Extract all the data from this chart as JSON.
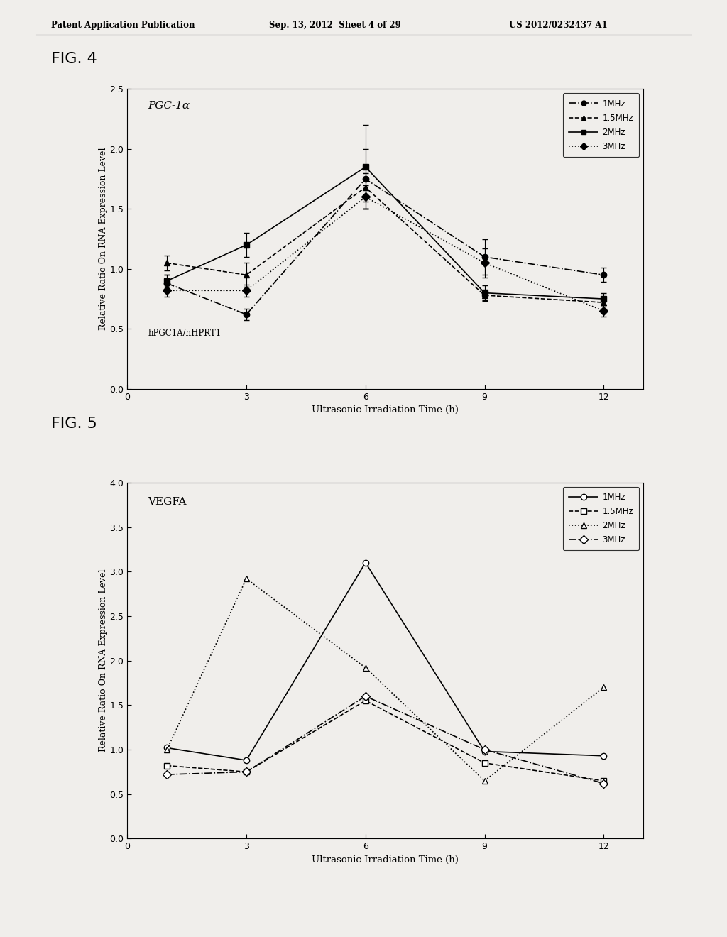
{
  "fig4": {
    "title": "PGC-1α",
    "subtitle": "hPGC1A/hHPRT1",
    "xlabel": "Ultrasonic Irradiation Time (h)",
    "ylabel": "Relative Ratio On RNA Expression Level",
    "xlim": [
      0,
      13
    ],
    "ylim": [
      0,
      2.5
    ],
    "xticks": [
      0,
      3,
      6,
      9,
      12
    ],
    "yticks": [
      0,
      0.5,
      1.0,
      1.5,
      2.0,
      2.5
    ],
    "x": [
      1,
      3,
      6,
      9,
      12
    ],
    "series_order": [
      "1MHz",
      "1.5MHz",
      "2MHz",
      "3MHz"
    ],
    "series": {
      "1MHz": {
        "y": [
          0.88,
          0.62,
          1.75,
          1.1,
          0.95
        ],
        "yerr": [
          0.07,
          0.05,
          0.25,
          0.15,
          0.06
        ],
        "linestyle": "-.",
        "marker": "o",
        "markerfacecolor": "black",
        "label": "1MHz"
      },
      "1.5MHz": {
        "y": [
          1.05,
          0.95,
          1.68,
          0.78,
          0.72
        ],
        "yerr": [
          0.06,
          0.1,
          0.12,
          0.05,
          0.05
        ],
        "linestyle": "--",
        "marker": "^",
        "markerfacecolor": "black",
        "label": "1.5MHz"
      },
      "2MHz": {
        "y": [
          0.9,
          1.2,
          1.85,
          0.8,
          0.75
        ],
        "yerr": [
          0.05,
          0.1,
          0.35,
          0.06,
          0.05
        ],
        "linestyle": "-",
        "marker": "s",
        "markerfacecolor": "black",
        "label": "2MHz"
      },
      "3MHz": {
        "y": [
          0.82,
          0.82,
          1.6,
          1.05,
          0.65
        ],
        "yerr": [
          0.05,
          0.05,
          0.1,
          0.12,
          0.05
        ],
        "linestyle": ":",
        "marker": "D",
        "markerfacecolor": "black",
        "label": "3MHz"
      }
    }
  },
  "fig5": {
    "title": "VEGFA",
    "xlabel": "Ultrasonic Irradiation Time (h)",
    "ylabel": "Relative Ratio On RNA Expression Level",
    "xlim": [
      0,
      13
    ],
    "ylim": [
      0,
      4
    ],
    "xticks": [
      0,
      3,
      6,
      9,
      12
    ],
    "yticks": [
      0,
      0.5,
      1.0,
      1.5,
      2.0,
      2.5,
      3.0,
      3.5,
      4.0
    ],
    "x": [
      1,
      3,
      6,
      9,
      12
    ],
    "series_order": [
      "1MHz",
      "1.5MHz",
      "2MHz",
      "3MHz"
    ],
    "series": {
      "1MHz": {
        "y": [
          1.02,
          0.88,
          3.1,
          0.98,
          0.93
        ],
        "linestyle": "-",
        "marker": "o",
        "markerfacecolor": "white",
        "label": "1MHz"
      },
      "1.5MHz": {
        "y": [
          0.82,
          0.75,
          1.55,
          0.85,
          0.65
        ],
        "linestyle": "--",
        "marker": "s",
        "markerfacecolor": "white",
        "label": "1.5MHz"
      },
      "2MHz": {
        "y": [
          1.0,
          2.92,
          1.92,
          0.65,
          1.7
        ],
        "linestyle": ":",
        "marker": "^",
        "markerfacecolor": "white",
        "label": "2MHz"
      },
      "3MHz": {
        "y": [
          0.72,
          0.75,
          1.6,
          1.0,
          0.62
        ],
        "linestyle": "-.",
        "marker": "D",
        "markerfacecolor": "white",
        "label": "3MHz"
      }
    }
  },
  "header_left": "Patent Application Publication",
  "header_center": "Sep. 13, 2012  Sheet 4 of 29",
  "header_right": "US 2012/0232437 A1",
  "fig4_label": "FIG. 4",
  "fig5_label": "FIG. 5",
  "background_color": "#f0eeeb",
  "plot_bg": "#f0eeeb",
  "text_color": "#000000"
}
